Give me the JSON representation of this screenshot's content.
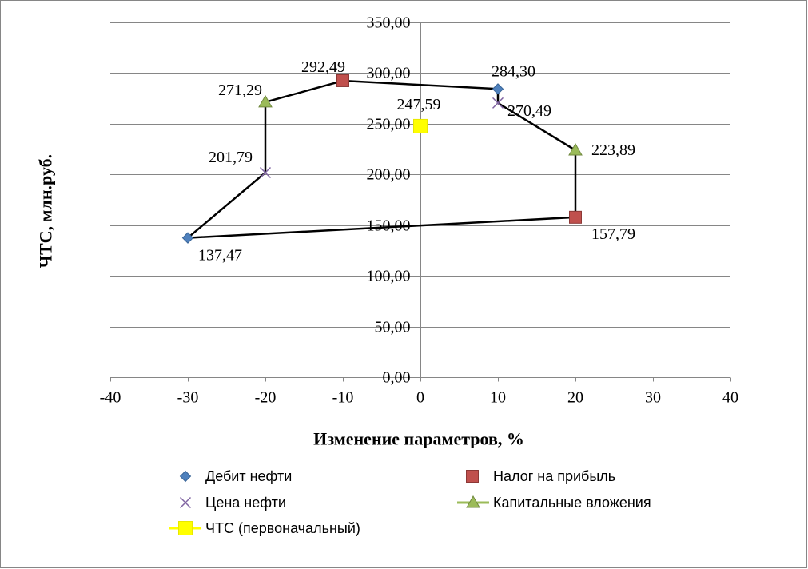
{
  "chart_data": {
    "type": "scatter",
    "xlabel": "Изменение параметров, %",
    "ylabel": "ЧТС, млн.руб.",
    "xlim": [
      -40,
      40
    ],
    "ylim": [
      0,
      350
    ],
    "x_ticks": [
      -40,
      -30,
      -20,
      -10,
      0,
      10,
      20,
      30,
      40
    ],
    "x_tick_labels": [
      "-40",
      "-30",
      "-20",
      "-10",
      "0",
      "10",
      "20",
      "30",
      "40"
    ],
    "y_ticks": [
      0,
      50,
      100,
      150,
      200,
      250,
      300,
      350
    ],
    "y_tick_labels": [
      "0,00",
      "50,00",
      "100,00",
      "150,00",
      "200,00",
      "250,00",
      "300,00",
      "350,00"
    ],
    "grid": {
      "horizontal": true,
      "vertical": false
    },
    "legend_position": "bottom",
    "series": [
      {
        "name": "Дебит нефти",
        "marker": "diamond",
        "color": "#4F81BD",
        "legend_line": false,
        "x": [
          -30,
          10
        ],
        "y": [
          137.47,
          284.3
        ],
        "labels": [
          "137,47",
          "284,30"
        ]
      },
      {
        "name": "Налог на прибыль",
        "marker": "square",
        "color": "#C0504D",
        "legend_line": false,
        "x": [
          -10,
          20
        ],
        "y": [
          292.49,
          157.79
        ],
        "labels": [
          "292,49",
          "157,79"
        ]
      },
      {
        "name": "Цена нефти",
        "marker": "x",
        "color": "#8064A2",
        "legend_line": false,
        "x": [
          -20,
          10
        ],
        "y": [
          201.79,
          270.49
        ],
        "labels": [
          "201,79",
          "270,49"
        ]
      },
      {
        "name": "Капитальные вложения",
        "marker": "triangle",
        "color": "#9BBB59",
        "legend_line": true,
        "x": [
          -20,
          20
        ],
        "y": [
          271.29,
          223.89
        ],
        "labels": [
          "271,29",
          "223,89"
        ]
      },
      {
        "name": "ЧТС (первоначальный)",
        "marker": "square",
        "color": "#FFFF00",
        "legend_line": true,
        "x": [
          0
        ],
        "y": [
          247.59
        ],
        "labels": [
          "247,59"
        ]
      }
    ],
    "outline": {
      "color": "#000000",
      "x": [
        -30,
        -20,
        -20,
        -10,
        10,
        10,
        20,
        20,
        -30
      ],
      "y": [
        137.47,
        201.79,
        271.29,
        292.49,
        284.3,
        270.49,
        223.89,
        157.79,
        137.47
      ]
    }
  }
}
